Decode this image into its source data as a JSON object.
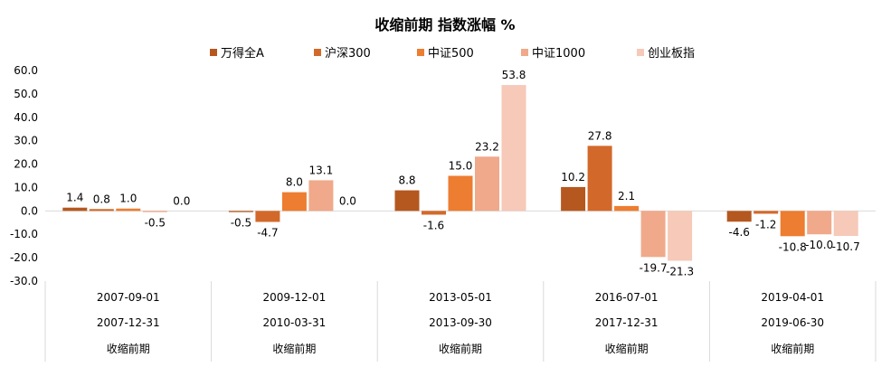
{
  "chart_data": {
    "type": "bar",
    "title": "收缩前期 指数涨幅 %",
    "xlabel": "",
    "ylabel": "",
    "ylim": [
      -30,
      60
    ],
    "yticks": [
      "60.0",
      "50.0",
      "40.0",
      "30.0",
      "20.0",
      "10.0",
      "0.0",
      "-10.0",
      "-20.0",
      "-30.0"
    ],
    "grid": false,
    "legend_position": "top",
    "categories": [
      {
        "start": "2007-09-01",
        "end": "2007-12-31",
        "label": "收缩前期"
      },
      {
        "start": "2009-12-01",
        "end": "2010-03-31",
        "label": "收缩前期"
      },
      {
        "start": "2013-05-01",
        "end": "2013-09-30",
        "label": "收缩前期"
      },
      {
        "start": "2016-07-01",
        "end": "2017-12-31",
        "label": "收缩前期"
      },
      {
        "start": "2019-04-01",
        "end": "2019-06-30",
        "label": "收缩前期"
      }
    ],
    "series": [
      {
        "name": "万得全A",
        "color": "#b5581f",
        "values": [
          1.4,
          -0.5,
          8.8,
          10.2,
          -4.6
        ],
        "labels": [
          "1.4",
          "-0.5",
          "8.8",
          "10.2",
          "-4.6"
        ]
      },
      {
        "name": "沪深300",
        "color": "#d2692a",
        "values": [
          0.8,
          -4.7,
          -1.6,
          27.8,
          -1.2
        ],
        "labels": [
          "0.8",
          "-4.7",
          "-1.6",
          "27.8",
          "-1.2"
        ]
      },
      {
        "name": "中证500",
        "color": "#ed7d31",
        "values": [
          1.0,
          8.0,
          15.0,
          2.1,
          -10.8
        ],
        "labels": [
          "1.0",
          "8.0",
          "15.0",
          "2.1",
          "-10.8"
        ]
      },
      {
        "name": "中证1000",
        "color": "#f0a98a",
        "values": [
          -0.5,
          13.1,
          23.2,
          -19.7,
          -10.0
        ],
        "labels": [
          "-0.5",
          "13.1",
          "23.2",
          "-19.7",
          "-10.0"
        ]
      },
      {
        "name": "创业板指",
        "color": "#f6c9b8",
        "values": [
          0.0,
          0.0,
          53.8,
          -21.3,
          -10.7
        ],
        "labels": [
          "0.0",
          "0.0",
          "53.8",
          "-21.3",
          "-10.7"
        ]
      }
    ]
  }
}
